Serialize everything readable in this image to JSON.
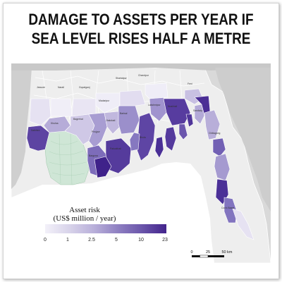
{
  "title_lines": [
    "DAMAGE TO ASSETS PER YEAR IF",
    "SEA LEVEL RISES HALF A METRE"
  ],
  "legend": {
    "title_line1": "Asset risk",
    "title_line2": "(US$ million / year)",
    "ticks": [
      "0",
      "1",
      "2.5",
      "5",
      "10",
      "23"
    ],
    "gradient_colors": [
      "#f3f1f9",
      "#d8d3ea",
      "#b9b0da",
      "#8f80c2",
      "#6a55aa",
      "#43248c"
    ]
  },
  "scale_bar": {
    "ticks": [
      "0",
      "25",
      "50 km"
    ]
  },
  "colors": {
    "background_land": "#d9d9d9",
    "sea": "#ffffff",
    "mangrove": "#cfe6d6",
    "district_border": "#ffffff",
    "risk_light": "#ddd8ee",
    "risk_mid": "#a396cf",
    "risk_dark": "#4a2a92"
  },
  "place_labels": [
    "Jessore",
    "Narail",
    "Gopalganj",
    "Shariatpur",
    "Chandpur",
    "Feni",
    "Khulna",
    "Bagerhat",
    "Barisal",
    "Lakshmipur",
    "Noakhali",
    "Satkhira",
    "Pirojpur",
    "Jhalokati",
    "Patuakhali",
    "Bhola",
    "Barguna",
    "Chittagong",
    "Cox's Bazar",
    "Madaripur",
    "Sandwip"
  ]
}
